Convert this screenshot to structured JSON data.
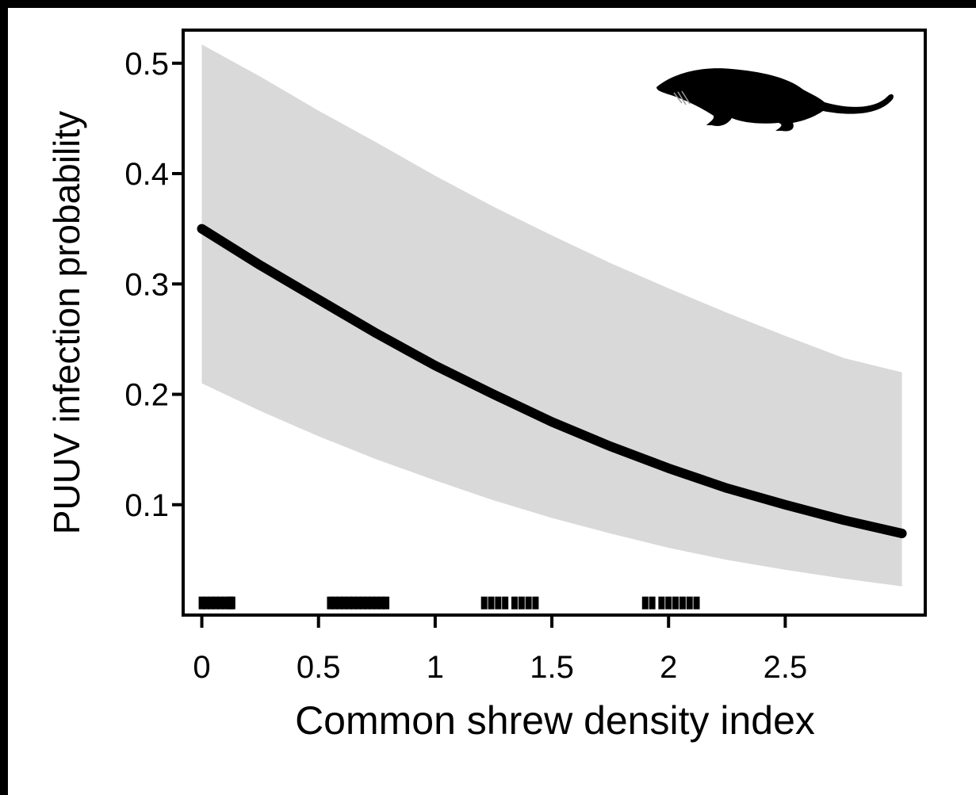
{
  "chart_data": {
    "type": "line",
    "title": "",
    "xlabel": "Common shrew density index",
    "ylabel": "PUUV infection probability",
    "xlim": [
      -0.08,
      3.1
    ],
    "ylim": [
      0.0,
      0.53
    ],
    "x_ticks": [
      {
        "value": 0,
        "label": "0"
      },
      {
        "value": 0.5,
        "label": "0.5"
      },
      {
        "value": 1,
        "label": "1"
      },
      {
        "value": 1.5,
        "label": "1.5"
      },
      {
        "value": 2,
        "label": "2"
      },
      {
        "value": 2.5,
        "label": "2.5"
      }
    ],
    "y_ticks": [
      {
        "value": 0.1,
        "label": "0.1"
      },
      {
        "value": 0.2,
        "label": "0.2"
      },
      {
        "value": 0.3,
        "label": "0.3"
      },
      {
        "value": 0.4,
        "label": "0.4"
      },
      {
        "value": 0.5,
        "label": "0.5"
      }
    ],
    "series": [
      {
        "x": [
          0,
          0.25,
          0.5,
          0.75,
          1.0,
          1.25,
          1.5,
          1.75,
          2.0,
          2.25,
          2.5,
          2.75,
          3.0
        ],
        "y": [
          0.35,
          0.317,
          0.286,
          0.255,
          0.226,
          0.2,
          0.175,
          0.153,
          0.133,
          0.115,
          0.1,
          0.086,
          0.074
        ],
        "color": "#000000"
      }
    ],
    "ci_band": {
      "x": [
        0,
        0.25,
        0.5,
        0.75,
        1.0,
        1.25,
        1.5,
        1.75,
        2.0,
        2.25,
        2.5,
        2.75,
        3.0
      ],
      "lower": [
        0.21,
        0.185,
        0.162,
        0.141,
        0.122,
        0.104,
        0.088,
        0.074,
        0.061,
        0.05,
        0.041,
        0.033,
        0.026
      ],
      "upper": [
        0.517,
        0.488,
        0.457,
        0.428,
        0.398,
        0.37,
        0.344,
        0.319,
        0.296,
        0.274,
        0.253,
        0.233,
        0.22
      ],
      "color": "#d9d9d9"
    },
    "rug_x": [
      0.0,
      0.02,
      0.04,
      0.06,
      0.08,
      0.1,
      0.12,
      0.13,
      0.55,
      0.57,
      0.59,
      0.61,
      0.63,
      0.65,
      0.67,
      0.69,
      0.71,
      0.73,
      0.75,
      0.77,
      0.79,
      1.21,
      1.24,
      1.27,
      1.3,
      1.34,
      1.37,
      1.4,
      1.43,
      1.9,
      1.93,
      1.97,
      2.0,
      2.03,
      2.06,
      2.09,
      2.12
    ],
    "rug_y": 0.011,
    "grid": false,
    "legend": "none",
    "icon": "shrew-silhouette-icon"
  }
}
